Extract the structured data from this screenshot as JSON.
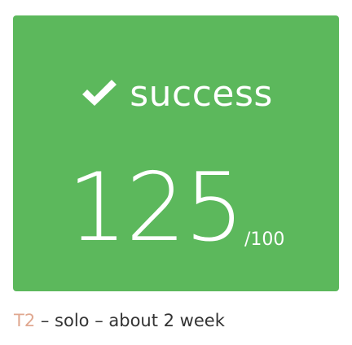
{
  "card": {
    "status": "success",
    "status_icon": "check-icon",
    "score": "125",
    "score_max": "/100",
    "colors": {
      "background": "#5cb85c",
      "text": "#ffffff"
    }
  },
  "meta": {
    "tag": "T2",
    "tag_color": "#e0a890",
    "description": " – solo – about 2 week"
  }
}
